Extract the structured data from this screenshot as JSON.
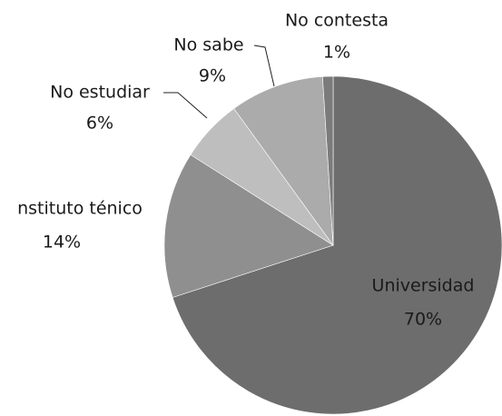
{
  "chart_data": {
    "type": "pie",
    "categories": [
      "Universidad",
      "nstituto ténico",
      "No estudiar",
      "No sabe",
      "No contesta"
    ],
    "values": [
      70,
      14,
      6,
      9,
      1
    ],
    "value_labels": [
      "70%",
      "14%",
      "6%",
      "9%",
      "1%"
    ],
    "colors": [
      "#6d6d6d",
      "#8f8f8f",
      "#bebebe",
      "#ababab",
      "#7b7b7b"
    ]
  }
}
